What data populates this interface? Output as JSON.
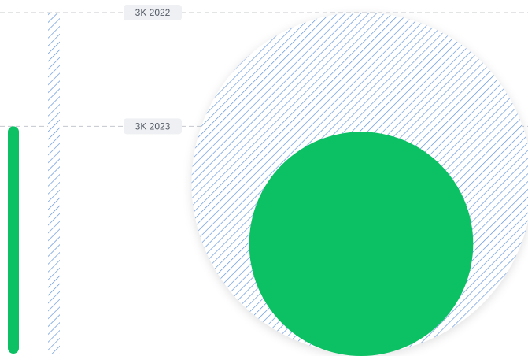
{
  "chart_data": {
    "type": "bar",
    "categories": [
      "2023",
      "2022"
    ],
    "series": [
      {
        "values": [
          2,
          3
        ]
      }
    ],
    "reference_lines": [
      {
        "label": "3K 2022",
        "year": "2022",
        "value": 3
      },
      {
        "label": "3K 2023",
        "year": "2023",
        "value": 2
      }
    ],
    "circles": [
      {
        "year": "2022",
        "value": 3,
        "style": "hatched"
      },
      {
        "year": "2023",
        "value": 2,
        "style": "solid"
      }
    ],
    "ylim": [
      0,
      3
    ],
    "grid": false,
    "legend": "none",
    "colors": {
      "current": "#0cc163",
      "previous_hatch": "#5b8fd9",
      "previous_bg": "#f3f5fa",
      "reference_line": "#c4c8ce",
      "label_bg": "#eef0f3",
      "label_text": "#555b66"
    }
  }
}
